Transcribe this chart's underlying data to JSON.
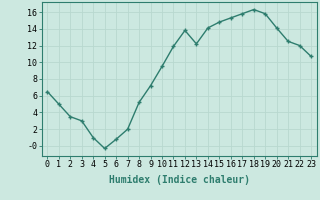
{
  "x": [
    0,
    1,
    2,
    3,
    4,
    5,
    6,
    7,
    8,
    9,
    10,
    11,
    12,
    13,
    14,
    15,
    16,
    17,
    18,
    19,
    20,
    21,
    22,
    23
  ],
  "y": [
    6.5,
    5.0,
    3.5,
    3.0,
    1.0,
    -0.3,
    0.8,
    2.0,
    5.2,
    7.2,
    9.5,
    11.9,
    13.8,
    12.2,
    14.1,
    14.8,
    15.3,
    15.8,
    16.3,
    15.8,
    14.1,
    12.5,
    12.0,
    10.7
  ],
  "line_color": "#2e7d6e",
  "marker": "+",
  "markersize": 3,
  "linewidth": 1.0,
  "bg_color": "#cce8e0",
  "grid_color": "#b8d8cf",
  "xlabel": "Humidex (Indice chaleur)",
  "xlabel_fontsize": 7,
  "yticks": [
    0,
    2,
    4,
    6,
    8,
    10,
    12,
    14,
    16
  ],
  "ytick_labels": [
    "-0",
    "2",
    "4",
    "6",
    "8",
    "10",
    "12",
    "14",
    "16"
  ],
  "ylim": [
    -1.2,
    17.2
  ],
  "xlim": [
    -0.5,
    23.5
  ],
  "xticks": [
    0,
    1,
    2,
    3,
    4,
    5,
    6,
    7,
    8,
    9,
    10,
    11,
    12,
    13,
    14,
    15,
    16,
    17,
    18,
    19,
    20,
    21,
    22,
    23
  ],
  "tick_fontsize": 6
}
